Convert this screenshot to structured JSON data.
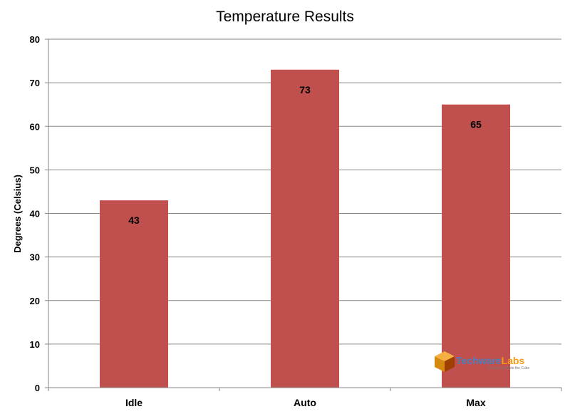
{
  "chart_data": {
    "type": "bar",
    "title": "Temperature Results",
    "xlabel": "",
    "ylabel": "Degrees (Celsius)",
    "categories": [
      "Idle",
      "Auto",
      "Max"
    ],
    "values": [
      43,
      73,
      65
    ],
    "data_labels": [
      "43",
      "73",
      "65"
    ],
    "ylim": [
      0,
      80
    ],
    "yticks": [
      "0",
      "10",
      "20",
      "30",
      "40",
      "50",
      "60",
      "70",
      "80"
    ],
    "grid": true,
    "legend": "none",
    "bar_color": "#c0504d"
  },
  "watermark": {
    "name_part1": "Techware",
    "name_part2": "Labs",
    "tagline": "Thinking Outside the Cube",
    "color_part1": "#4a7fc1",
    "color_part2": "#f39c12"
  }
}
